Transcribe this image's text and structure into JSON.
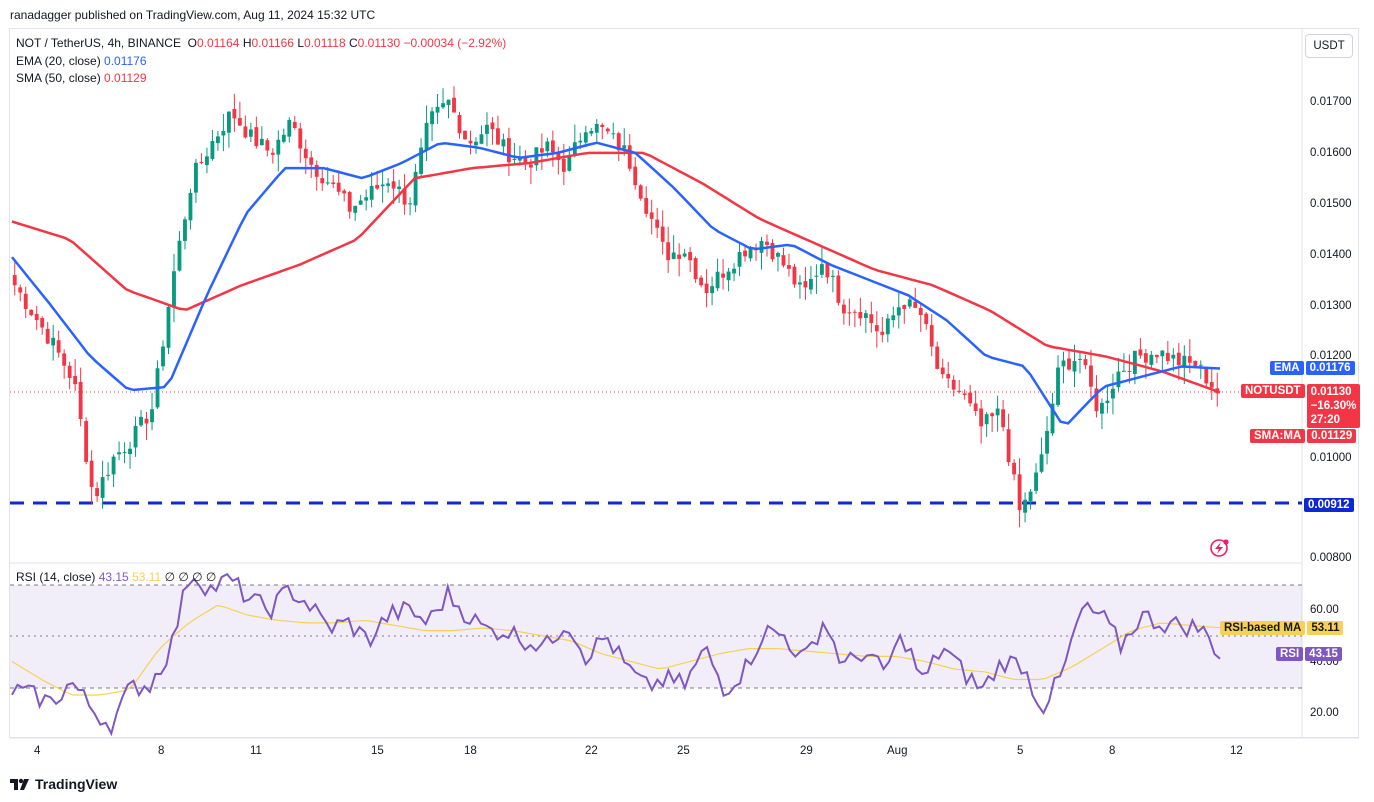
{
  "publisher": "ranadagger published on TradingView.com, Aug 11, 2024 15:32 UTC",
  "header": {
    "symbol": "NOT / TetherUS, 4h, BINANCE",
    "o_label": "O",
    "o": "0.01164",
    "h_label": "H",
    "h": "0.01166",
    "l_label": "L",
    "l": "0.01118",
    "c_label": "C",
    "c": "0.01130",
    "change": "−0.00034 (−2.92%)",
    "ema_label": "EMA (20, close)",
    "ema_value": "0.01176",
    "sma_label": "SMA (50, close)",
    "sma_value": "0.01129",
    "rsi_label": "RSI (14, close)",
    "rsi_value": "43.15",
    "rsi_ma_value": "53.11",
    "rsi_extra": "∅ ∅ ∅ ∅"
  },
  "currency_button": "USDT",
  "price_axis": [
    "0.01700",
    "0.01600",
    "0.01500",
    "0.01400",
    "0.01300",
    "0.01200",
    "0.01000",
    "0.00800"
  ],
  "rsi_axis": [
    "60.00",
    "40.00",
    "20.00"
  ],
  "date_axis": [
    "4",
    "8",
    "11",
    "15",
    "18",
    "22",
    "25",
    "29",
    "Aug",
    "5",
    "8",
    "12"
  ],
  "tags": {
    "ema_name": "EMA",
    "ema_value": "0.01176",
    "symbol_name": "NOTUSDT",
    "price": "0.01130",
    "pct": "−16.30%",
    "countdown": "27:20",
    "sma_name": "SMA:MA",
    "sma_value": "0.01129",
    "support": "0.00912",
    "rsi_ma_name": "RSI-based MA",
    "rsi_ma_value": "53.11",
    "rsi_name": "RSI",
    "rsi_value": "43.15"
  },
  "brand": "TradingView",
  "colors": {
    "up": "#089981",
    "down": "#f23645",
    "ema": "#2962ff",
    "sma": "#f23645",
    "rsi": "#7e57c2",
    "rsi_ma": "#f7d154",
    "support": "#0c29d4"
  },
  "chart_data": {
    "type": "candlestick",
    "title": "NOT / TetherUS, 4h, BINANCE",
    "x": [
      "4",
      "8",
      "11",
      "15",
      "18",
      "22",
      "25",
      "29",
      "Aug",
      "5",
      "8",
      "12"
    ],
    "ylim": [
      0.0078,
      0.0183
    ],
    "support_level": 0.00912,
    "close_path": [
      0.0134,
      0.0128,
      0.0122,
      0.0115,
      0.0092,
      0.01,
      0.0104,
      0.011,
      0.0135,
      0.0155,
      0.0162,
      0.0168,
      0.0163,
      0.016,
      0.0166,
      0.0158,
      0.0154,
      0.0149,
      0.0152,
      0.0155,
      0.015,
      0.0166,
      0.017,
      0.0162,
      0.0165,
      0.016,
      0.0158,
      0.0161,
      0.0157,
      0.0166,
      0.0164,
      0.016,
      0.015,
      0.014,
      0.0141,
      0.0133,
      0.0137,
      0.0141,
      0.0143,
      0.0138,
      0.0132,
      0.0139,
      0.013,
      0.0129,
      0.0124,
      0.0131,
      0.0128,
      0.0115,
      0.0113,
      0.0106,
      0.0109,
      0.0089,
      0.0098,
      0.0118,
      0.012,
      0.0109,
      0.0117,
      0.012,
      0.0121,
      0.0119,
      0.0118,
      0.0113
    ],
    "ema20_path": [
      0.01395,
      0.013,
      0.012,
      0.01133,
      0.0114,
      0.0132,
      0.0148,
      0.0157,
      0.0157,
      0.0155,
      0.0158,
      0.0162,
      0.0161,
      0.0159,
      0.016,
      0.0162,
      0.016,
      0.0153,
      0.0145,
      0.0141,
      0.0142,
      0.0138,
      0.0135,
      0.0132,
      0.0127,
      0.012,
      0.0118,
      0.0106,
      0.0114,
      0.0116,
      0.0118,
      0.01176
    ],
    "sma50_path": [
      0.01465,
      0.0143,
      0.0133,
      0.0129,
      0.0134,
      0.0138,
      0.0143,
      0.0155,
      0.0157,
      0.0158,
      0.016,
      0.016,
      0.0154,
      0.0147,
      0.0142,
      0.0137,
      0.0134,
      0.0129,
      0.0122,
      0.012,
      0.0117,
      0.01129
    ],
    "rsi": {
      "levels": [
        70,
        50,
        30
      ],
      "values": [
        29,
        27,
        24,
        32,
        22,
        15,
        30,
        31,
        45,
        75,
        68,
        72,
        64,
        60,
        68,
        62,
        53,
        55,
        48,
        58,
        60,
        55,
        66,
        58,
        52,
        52,
        48,
        46,
        56,
        42,
        50,
        38,
        30,
        33,
        31,
        45,
        29,
        37,
        52,
        50,
        40,
        56,
        38,
        44,
        36,
        50,
        32,
        46,
        36,
        29,
        40,
        39,
        22,
        34,
        60,
        58,
        46,
        58,
        55,
        54,
        53,
        43
      ],
      "ma_values": [
        40,
        33,
        27,
        27,
        29,
        45,
        55,
        62,
        58,
        56,
        55,
        55,
        56,
        54,
        52,
        52,
        53,
        52,
        50,
        48,
        43,
        40,
        37,
        40,
        43,
        45,
        45,
        44,
        43,
        42,
        42,
        40,
        37,
        36,
        33,
        33,
        38,
        45,
        52,
        55,
        54,
        53.11
      ]
    }
  }
}
